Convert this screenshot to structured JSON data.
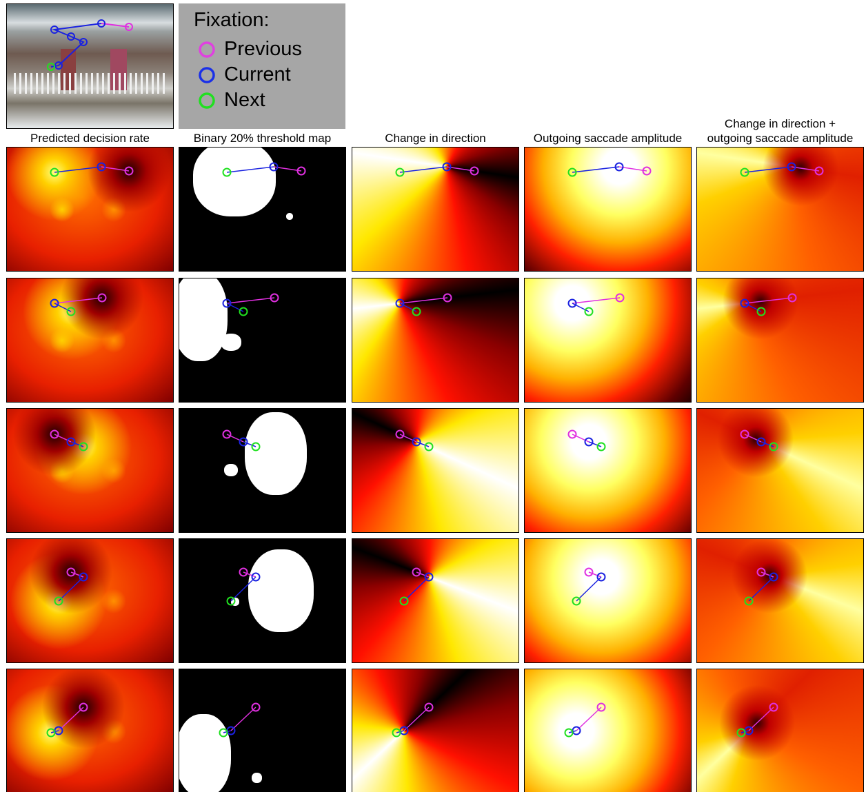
{
  "legend": {
    "title": "Fixation:",
    "items": [
      "Previous",
      "Current",
      "Next"
    ]
  },
  "columns": [
    [
      "Predicted decision rate"
    ],
    [
      "Binary 20% threshold map"
    ],
    [
      "Change in direction"
    ],
    [
      "Outgoing saccade amplitude"
    ],
    [
      "Change in direction +",
      "outgoing saccade amplitude"
    ]
  ]
}
